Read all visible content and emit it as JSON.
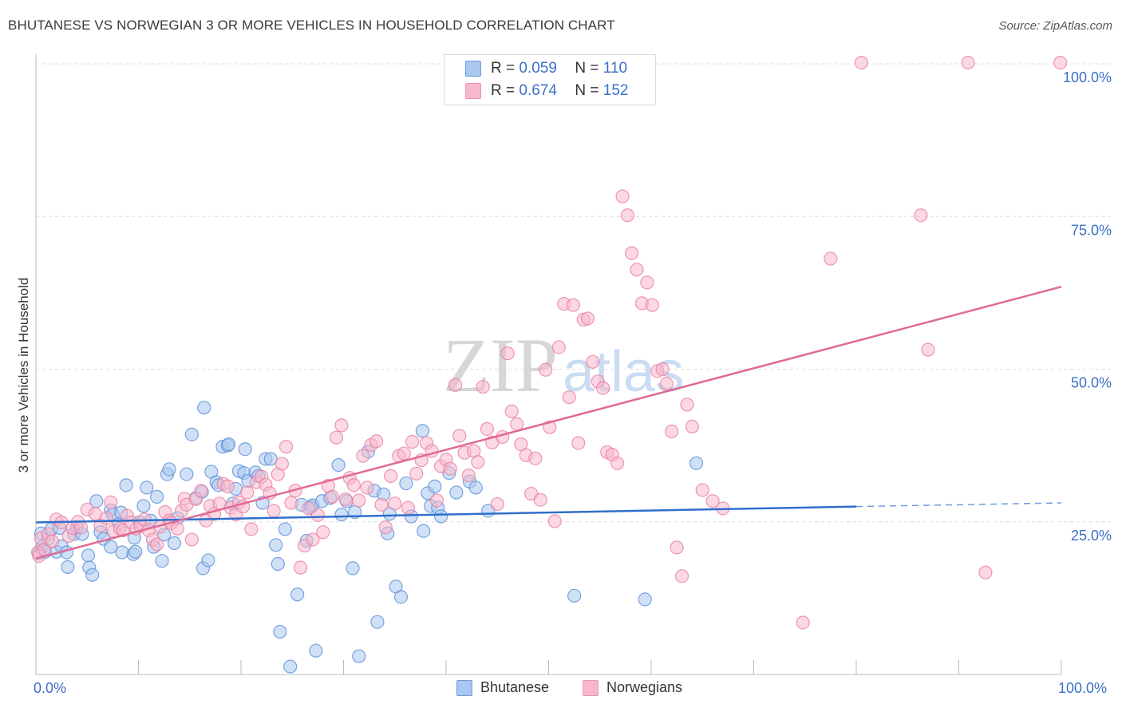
{
  "title": "BHUTANESE VS NORWEGIAN 3 OR MORE VEHICLES IN HOUSEHOLD CORRELATION CHART",
  "source": "Source: ZipAtlas.com",
  "watermark": {
    "zip": "ZIP",
    "atlas": "atlas"
  },
  "legend_top": [
    {
      "r_label": "R =",
      "r_value": "0.059",
      "n_label": "N =",
      "n_value": "110",
      "color": "#a9c8f0"
    },
    {
      "r_label": "R =",
      "r_value": "0.674",
      "n_label": "N =",
      "n_value": "152",
      "color": "#f7b8cc"
    }
  ],
  "legend_bottom": [
    {
      "label": "Bhutanese",
      "color": "#a9c8f0"
    },
    {
      "label": "Norwegians",
      "color": "#f7b8cc"
    }
  ],
  "chart_data": {
    "type": "scatter",
    "title": "BHUTANESE VS NORWEGIAN 3 OR MORE VEHICLES IN HOUSEHOLD CORRELATION CHART",
    "xlabel": "",
    "ylabel": "3 or more Vehicles in Household",
    "xlim": [
      0,
      100
    ],
    "ylim": [
      0,
      100
    ],
    "x_tick_labels": [
      "0.0%",
      "100.0%"
    ],
    "y_tick_labels": [
      "25.0%",
      "50.0%",
      "75.0%",
      "100.0%"
    ],
    "y_ticks": [
      25,
      50,
      75,
      100
    ],
    "grid": "horizontal dashed",
    "legend_position": "top-center",
    "series": [
      {
        "name": "Bhutanese",
        "color": "#5b8fd6",
        "fill": "#a9c8f0",
        "trend": {
          "x0": 0,
          "y0": 24.9,
          "x1": 80,
          "y1": 27.5,
          "x_dash_end": 100,
          "y_dash_end": 28.1,
          "line_color": "#2f6fcc"
        },
        "points": [
          [
            0.5,
            23.1
          ],
          [
            0.6,
            20.9
          ],
          [
            0.9,
            20.1
          ],
          [
            1.2,
            22.2
          ],
          [
            1.5,
            23.8
          ],
          [
            2.0,
            20.1
          ],
          [
            2.3,
            24.0
          ],
          [
            2.5,
            21.0
          ],
          [
            3.0,
            20.0
          ],
          [
            3.1,
            17.6
          ],
          [
            3.7,
            23.0
          ],
          [
            4.0,
            24.1
          ],
          [
            4.5,
            23.0
          ],
          [
            5.1,
            19.5
          ],
          [
            5.2,
            17.5
          ],
          [
            5.5,
            16.3
          ],
          [
            5.9,
            28.4
          ],
          [
            6.3,
            23.3
          ],
          [
            6.6,
            22.2
          ],
          [
            7.3,
            20.9
          ],
          [
            7.3,
            26.9
          ],
          [
            7.5,
            26.2
          ],
          [
            8.1,
            24.7
          ],
          [
            8.3,
            26.5
          ],
          [
            8.4,
            20.0
          ],
          [
            8.8,
            31.0
          ],
          [
            9.5,
            19.7
          ],
          [
            9.6,
            22.4
          ],
          [
            9.7,
            20.1
          ],
          [
            10.1,
            24.9
          ],
          [
            10.5,
            27.6
          ],
          [
            10.8,
            30.6
          ],
          [
            11.2,
            25.2
          ],
          [
            11.8,
            29.1
          ],
          [
            11.5,
            20.9
          ],
          [
            12.3,
            18.6
          ],
          [
            12.5,
            22.9
          ],
          [
            12.8,
            32.8
          ],
          [
            13.0,
            33.6
          ],
          [
            13.5,
            21.5
          ],
          [
            13.8,
            25.6
          ],
          [
            14.7,
            32.8
          ],
          [
            15.2,
            39.3
          ],
          [
            15.6,
            28.9
          ],
          [
            16.2,
            29.9
          ],
          [
            16.3,
            17.4
          ],
          [
            16.4,
            43.7
          ],
          [
            16.8,
            18.7
          ],
          [
            17.1,
            33.2
          ],
          [
            17.6,
            31.5
          ],
          [
            17.8,
            31.0
          ],
          [
            18.2,
            37.3
          ],
          [
            18.7,
            37.5
          ],
          [
            18.8,
            37.7
          ],
          [
            19.2,
            28.0
          ],
          [
            19.5,
            30.4
          ],
          [
            19.8,
            33.3
          ],
          [
            20.3,
            33.0
          ],
          [
            20.4,
            36.9
          ],
          [
            20.7,
            31.7
          ],
          [
            21.4,
            33.1
          ],
          [
            21.7,
            32.5
          ],
          [
            22.1,
            28.1
          ],
          [
            22.4,
            35.3
          ],
          [
            22.9,
            35.3
          ],
          [
            23.4,
            21.2
          ],
          [
            23.6,
            18.1
          ],
          [
            23.8,
            7.0
          ],
          [
            24.3,
            23.8
          ],
          [
            24.8,
            1.3
          ],
          [
            25.5,
            13.1
          ],
          [
            25.9,
            27.8
          ],
          [
            26.4,
            21.9
          ],
          [
            26.8,
            27.4
          ],
          [
            27.0,
            27.7
          ],
          [
            27.3,
            3.9
          ],
          [
            27.9,
            28.4
          ],
          [
            28.7,
            28.9
          ],
          [
            29.5,
            34.3
          ],
          [
            29.8,
            26.2
          ],
          [
            30.3,
            28.4
          ],
          [
            30.9,
            17.4
          ],
          [
            31.1,
            26.6
          ],
          [
            31.5,
            3.0
          ],
          [
            32.4,
            36.5
          ],
          [
            33.0,
            30.1
          ],
          [
            33.3,
            8.6
          ],
          [
            33.9,
            29.5
          ],
          [
            34.3,
            23.1
          ],
          [
            34.5,
            26.3
          ],
          [
            35.1,
            14.4
          ],
          [
            35.6,
            12.7
          ],
          [
            36.1,
            31.3
          ],
          [
            36.6,
            25.9
          ],
          [
            37.7,
            39.9
          ],
          [
            37.8,
            23.5
          ],
          [
            38.2,
            29.7
          ],
          [
            38.5,
            27.6
          ],
          [
            38.9,
            30.8
          ],
          [
            39.2,
            27.3
          ],
          [
            39.5,
            25.9
          ],
          [
            40.3,
            33.0
          ],
          [
            41.0,
            29.8
          ],
          [
            42.3,
            31.6
          ],
          [
            42.9,
            30.6
          ],
          [
            44.1,
            26.8
          ],
          [
            52.5,
            12.9
          ],
          [
            59.4,
            12.3
          ],
          [
            64.4,
            34.6
          ],
          [
            0.3,
            19.8
          ]
        ]
      },
      {
        "name": "Norwegians",
        "color": "#e87fa0",
        "fill": "#f7b8cc",
        "trend": {
          "x0": 0,
          "y0": 19.0,
          "x1": 100,
          "y1": 63.5,
          "line_color": "#e06a93"
        },
        "points": [
          [
            0.2,
            20.0
          ],
          [
            0.3,
            19.4
          ],
          [
            0.5,
            22.3
          ],
          [
            0.8,
            20.5
          ],
          [
            1.2,
            23.0
          ],
          [
            1.6,
            21.8
          ],
          [
            2.0,
            25.4
          ],
          [
            2.5,
            24.9
          ],
          [
            3.2,
            22.7
          ],
          [
            3.6,
            24.0
          ],
          [
            4.1,
            25.0
          ],
          [
            4.4,
            24.1
          ],
          [
            5.0,
            27.0
          ],
          [
            5.8,
            26.3
          ],
          [
            6.3,
            24.4
          ],
          [
            6.9,
            25.6
          ],
          [
            7.3,
            28.2
          ],
          [
            7.6,
            23.5
          ],
          [
            8.2,
            23.9
          ],
          [
            8.5,
            23.6
          ],
          [
            8.9,
            26.0
          ],
          [
            9.3,
            24.9
          ],
          [
            9.8,
            23.9
          ],
          [
            10.2,
            24.3
          ],
          [
            10.6,
            25.4
          ],
          [
            11.0,
            23.6
          ],
          [
            11.4,
            22.1
          ],
          [
            11.8,
            21.3
          ],
          [
            12.1,
            24.2
          ],
          [
            12.6,
            26.6
          ],
          [
            13.0,
            25.2
          ],
          [
            13.2,
            24.8
          ],
          [
            13.8,
            23.9
          ],
          [
            14.2,
            26.8
          ],
          [
            14.5,
            28.8
          ],
          [
            14.7,
            27.8
          ],
          [
            15.2,
            22.1
          ],
          [
            15.6,
            28.7
          ],
          [
            16.1,
            30.1
          ],
          [
            16.6,
            25.2
          ],
          [
            17.0,
            27.6
          ],
          [
            17.4,
            26.3
          ],
          [
            17.9,
            28.0
          ],
          [
            18.3,
            31.2
          ],
          [
            18.7,
            30.8
          ],
          [
            19.0,
            27.3
          ],
          [
            19.5,
            26.2
          ],
          [
            19.8,
            28.2
          ],
          [
            20.2,
            27.5
          ],
          [
            20.6,
            29.8
          ],
          [
            21.0,
            23.8
          ],
          [
            21.5,
            31.5
          ],
          [
            22.0,
            32.4
          ],
          [
            22.4,
            31.1
          ],
          [
            22.8,
            29.7
          ],
          [
            23.2,
            26.8
          ],
          [
            23.6,
            32.8
          ],
          [
            24.0,
            34.5
          ],
          [
            24.4,
            37.3
          ],
          [
            24.9,
            28.1
          ],
          [
            25.3,
            30.1
          ],
          [
            25.8,
            17.5
          ],
          [
            26.2,
            21.1
          ],
          [
            26.6,
            27.2
          ],
          [
            27.0,
            22.1
          ],
          [
            27.5,
            26.1
          ],
          [
            28.0,
            23.3
          ],
          [
            28.5,
            30.9
          ],
          [
            28.9,
            29.1
          ],
          [
            29.3,
            38.8
          ],
          [
            29.8,
            40.8
          ],
          [
            30.2,
            28.7
          ],
          [
            30.6,
            32.2
          ],
          [
            31.0,
            31.0
          ],
          [
            31.5,
            28.5
          ],
          [
            31.9,
            35.8
          ],
          [
            32.3,
            30.6
          ],
          [
            32.7,
            37.6
          ],
          [
            33.2,
            38.2
          ],
          [
            33.7,
            27.8
          ],
          [
            34.1,
            24.1
          ],
          [
            34.6,
            32.5
          ],
          [
            35.0,
            28.0
          ],
          [
            35.4,
            35.8
          ],
          [
            35.9,
            36.2
          ],
          [
            36.3,
            27.3
          ],
          [
            36.7,
            38.1
          ],
          [
            37.1,
            32.9
          ],
          [
            37.6,
            35.1
          ],
          [
            38.1,
            37.9
          ],
          [
            38.6,
            36.6
          ],
          [
            39.1,
            28.5
          ],
          [
            39.5,
            34.1
          ],
          [
            40.0,
            35.2
          ],
          [
            40.4,
            33.7
          ],
          [
            40.9,
            47.4
          ],
          [
            41.3,
            39.1
          ],
          [
            41.8,
            36.3
          ],
          [
            42.2,
            32.6
          ],
          [
            42.7,
            36.6
          ],
          [
            43.1,
            34.8
          ],
          [
            43.6,
            47.1
          ],
          [
            44.0,
            40.2
          ],
          [
            44.5,
            38.0
          ],
          [
            45.0,
            27.9
          ],
          [
            45.5,
            38.9
          ],
          [
            46.0,
            52.6
          ],
          [
            46.4,
            43.1
          ],
          [
            46.9,
            41.0
          ],
          [
            47.3,
            37.7
          ],
          [
            47.8,
            35.9
          ],
          [
            48.3,
            29.6
          ],
          [
            48.7,
            35.4
          ],
          [
            49.2,
            28.6
          ],
          [
            49.7,
            49.9
          ],
          [
            50.1,
            40.5
          ],
          [
            50.6,
            25.1
          ],
          [
            51.0,
            53.6
          ],
          [
            51.5,
            60.7
          ],
          [
            52.0,
            45.4
          ],
          [
            52.4,
            60.5
          ],
          [
            52.9,
            37.9
          ],
          [
            53.4,
            58.1
          ],
          [
            53.8,
            58.3
          ],
          [
            54.3,
            51.2
          ],
          [
            54.8,
            48.0
          ],
          [
            55.3,
            46.9
          ],
          [
            55.7,
            36.4
          ],
          [
            56.2,
            36.0
          ],
          [
            56.7,
            34.6
          ],
          [
            57.2,
            78.3
          ],
          [
            57.7,
            75.2
          ],
          [
            58.1,
            69.0
          ],
          [
            58.6,
            66.3
          ],
          [
            59.1,
            60.8
          ],
          [
            59.6,
            64.2
          ],
          [
            60.1,
            60.5
          ],
          [
            60.6,
            49.7
          ],
          [
            61.1,
            50.0
          ],
          [
            61.5,
            47.6
          ],
          [
            62.0,
            39.8
          ],
          [
            62.5,
            20.8
          ],
          [
            63.0,
            16.1
          ],
          [
            63.5,
            44.2
          ],
          [
            64.0,
            40.6
          ],
          [
            74.8,
            8.5
          ],
          [
            77.5,
            68.1
          ],
          [
            80.5,
            100.2
          ],
          [
            86.3,
            75.2
          ],
          [
            87.0,
            53.2
          ],
          [
            90.9,
            100.2
          ],
          [
            92.6,
            16.7
          ],
          [
            99.9,
            100.2
          ],
          [
            65.0,
            30.2
          ],
          [
            66.0,
            28.4
          ],
          [
            67.0,
            27.2
          ]
        ]
      }
    ]
  }
}
